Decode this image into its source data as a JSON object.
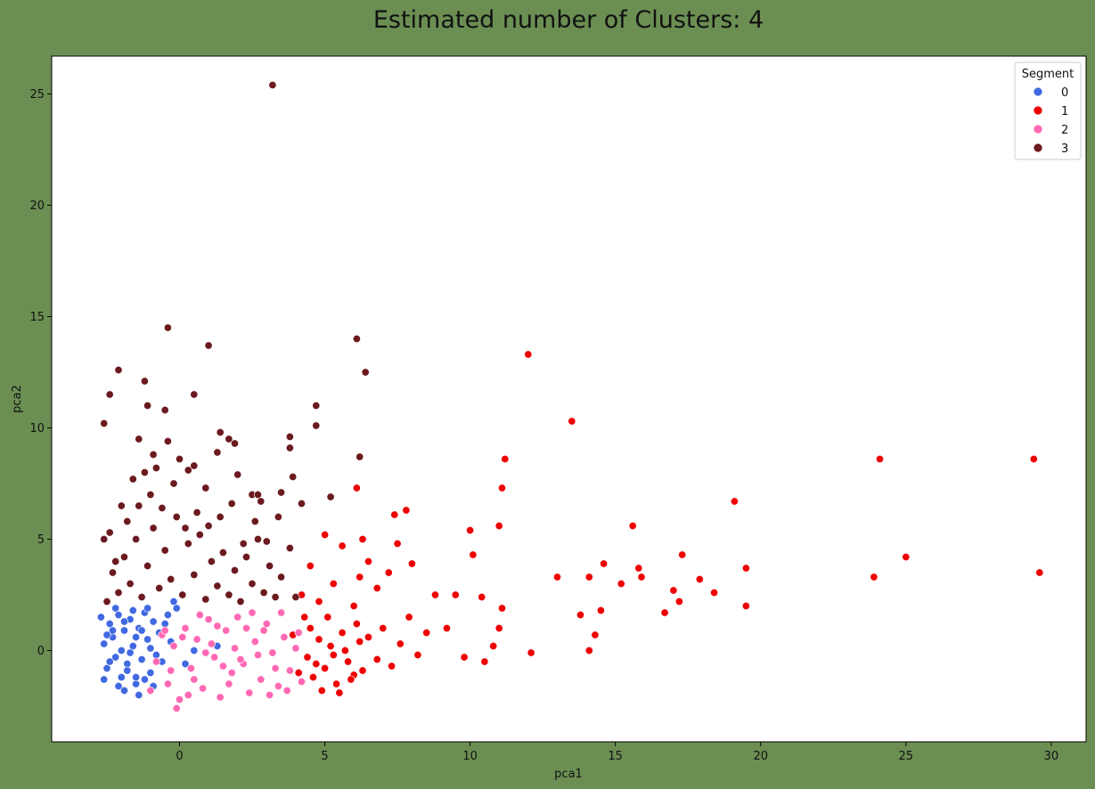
{
  "chart_data": {
    "type": "scatter",
    "title": "Estimated number of Clusters: 4",
    "xlabel": "pca1",
    "ylabel": "pca2",
    "xlim": [
      -4.4,
      31.2
    ],
    "ylim": [
      -4.1,
      26.7
    ],
    "xticks": [
      0,
      5,
      10,
      15,
      20,
      25,
      30
    ],
    "yticks": [
      0,
      5,
      10,
      15,
      20,
      25
    ],
    "grid": false,
    "legend": {
      "title": "Segment",
      "placement": "top-right"
    },
    "colors": {
      "0": "#4169e1",
      "1": "#ee0000",
      "2": "#ff69b4",
      "3": "#6b1a1f",
      "background": "#6b8f53",
      "plot_bg": "#ffffff"
    },
    "series": [
      {
        "name": "0",
        "color": "#4169e1",
        "points": [
          [
            -2.7,
            1.5
          ],
          [
            -2.6,
            0.3
          ],
          [
            -2.5,
            -0.8
          ],
          [
            -2.4,
            1.2
          ],
          [
            -2.3,
            0.6
          ],
          [
            -2.2,
            -0.3
          ],
          [
            -2.1,
            1.6
          ],
          [
            -2.0,
            -1.2
          ],
          [
            -1.9,
            0.9
          ],
          [
            -1.8,
            -0.6
          ],
          [
            -1.7,
            1.4
          ],
          [
            -1.6,
            0.2
          ],
          [
            -1.5,
            -1.5
          ],
          [
            -1.4,
            1.0
          ],
          [
            -1.3,
            -0.4
          ],
          [
            -1.2,
            1.7
          ],
          [
            -1.1,
            0.5
          ],
          [
            -1.0,
            -1.0
          ],
          [
            -0.9,
            1.3
          ],
          [
            -0.8,
            -0.2
          ],
          [
            -2.6,
            -1.3
          ],
          [
            -2.2,
            1.9
          ],
          [
            -1.9,
            -1.8
          ],
          [
            -1.6,
            1.8
          ],
          [
            -1.4,
            -2.0
          ],
          [
            -1.1,
            1.9
          ],
          [
            -0.7,
            0.8
          ],
          [
            -0.5,
            1.2
          ],
          [
            -0.3,
            0.4
          ],
          [
            -0.1,
            1.9
          ],
          [
            0.2,
            -0.6
          ],
          [
            0.5,
            0.0
          ],
          [
            1.3,
            0.2
          ],
          [
            -2.0,
            0.0
          ],
          [
            -1.5,
            0.6
          ],
          [
            -1.0,
            0.1
          ],
          [
            -2.4,
            -0.5
          ],
          [
            -1.8,
            -0.9
          ],
          [
            -1.2,
            -1.3
          ],
          [
            -0.6,
            -0.5
          ],
          [
            -2.3,
            0.9
          ],
          [
            -1.7,
            -0.1
          ],
          [
            -0.4,
            1.6
          ],
          [
            -0.2,
            2.2
          ],
          [
            -1.3,
            0.9
          ],
          [
            -2.1,
            -1.6
          ],
          [
            -1.5,
            -1.2
          ],
          [
            -0.9,
            -1.6
          ],
          [
            -2.5,
            0.7
          ],
          [
            -1.9,
            1.3
          ]
        ]
      },
      {
        "name": "1",
        "color": "#ee0000",
        "points": [
          [
            4.4,
            -0.3
          ],
          [
            4.6,
            -1.2
          ],
          [
            4.8,
            0.5
          ],
          [
            5.0,
            -0.8
          ],
          [
            5.2,
            0.2
          ],
          [
            5.4,
            -1.5
          ],
          [
            5.6,
            0.8
          ],
          [
            5.8,
            -0.5
          ],
          [
            6.0,
            -1.1
          ],
          [
            6.2,
            0.4
          ],
          [
            4.5,
            1.0
          ],
          [
            4.7,
            -0.6
          ],
          [
            4.9,
            -1.8
          ],
          [
            5.1,
            1.5
          ],
          [
            5.3,
            -0.2
          ],
          [
            5.5,
            -1.9
          ],
          [
            5.7,
            0.0
          ],
          [
            5.9,
            -1.3
          ],
          [
            6.1,
            1.2
          ],
          [
            6.3,
            -0.9
          ],
          [
            6.5,
            0.6
          ],
          [
            6.8,
            -0.4
          ],
          [
            7.0,
            1.0
          ],
          [
            7.3,
            -0.7
          ],
          [
            7.6,
            0.3
          ],
          [
            7.9,
            1.5
          ],
          [
            8.2,
            -0.2
          ],
          [
            8.5,
            0.8
          ],
          [
            8.8,
            2.5
          ],
          [
            9.2,
            1.0
          ],
          [
            4.2,
            2.5
          ],
          [
            4.5,
            3.8
          ],
          [
            4.8,
            2.2
          ],
          [
            5.0,
            5.2
          ],
          [
            5.3,
            3.0
          ],
          [
            5.6,
            4.7
          ],
          [
            6.0,
            2.0
          ],
          [
            6.2,
            3.3
          ],
          [
            6.5,
            4.0
          ],
          [
            6.8,
            2.8
          ],
          [
            7.2,
            3.5
          ],
          [
            7.5,
            4.8
          ],
          [
            7.8,
            6.3
          ],
          [
            8.0,
            3.9
          ],
          [
            6.1,
            7.3
          ],
          [
            6.3,
            5.0
          ],
          [
            7.4,
            6.1
          ],
          [
            9.5,
            2.5
          ],
          [
            9.8,
            -0.3
          ],
          [
            10.0,
            5.4
          ],
          [
            10.1,
            4.3
          ],
          [
            10.4,
            2.4
          ],
          [
            10.5,
            -0.5
          ],
          [
            10.8,
            0.2
          ],
          [
            11.0,
            1.0
          ],
          [
            11.0,
            5.6
          ],
          [
            11.1,
            7.3
          ],
          [
            11.2,
            8.6
          ],
          [
            11.1,
            1.9
          ],
          [
            12.1,
            -0.1
          ],
          [
            12.0,
            13.3
          ],
          [
            13.0,
            3.3
          ],
          [
            13.5,
            10.3
          ],
          [
            13.8,
            1.6
          ],
          [
            14.1,
            3.3
          ],
          [
            14.3,
            0.7
          ],
          [
            14.5,
            1.8
          ],
          [
            14.6,
            3.9
          ],
          [
            14.1,
            0.0
          ],
          [
            15.2,
            3.0
          ],
          [
            15.6,
            5.6
          ],
          [
            15.8,
            3.7
          ],
          [
            15.9,
            3.3
          ],
          [
            16.7,
            1.7
          ],
          [
            17.0,
            2.7
          ],
          [
            17.2,
            2.2
          ],
          [
            17.3,
            4.3
          ],
          [
            17.9,
            3.2
          ],
          [
            18.4,
            2.6
          ],
          [
            19.1,
            6.7
          ],
          [
            19.5,
            3.7
          ],
          [
            19.5,
            2.0
          ],
          [
            23.9,
            3.3
          ],
          [
            24.1,
            8.6
          ],
          [
            25.0,
            4.2
          ],
          [
            29.4,
            8.6
          ],
          [
            29.6,
            3.5
          ],
          [
            3.9,
            0.7
          ],
          [
            4.1,
            -1.0
          ],
          [
            4.3,
            1.5
          ]
        ]
      },
      {
        "name": "2",
        "color": "#ff69b4",
        "points": [
          [
            -1.0,
            -1.8
          ],
          [
            -0.8,
            -0.5
          ],
          [
            -0.6,
            0.7
          ],
          [
            -0.4,
            -1.5
          ],
          [
            -0.2,
            0.2
          ],
          [
            0.0,
            -2.2
          ],
          [
            0.2,
            1.0
          ],
          [
            0.4,
            -0.8
          ],
          [
            0.6,
            0.5
          ],
          [
            0.8,
            -1.7
          ],
          [
            1.0,
            1.4
          ],
          [
            1.2,
            -0.3
          ],
          [
            1.4,
            -2.1
          ],
          [
            1.6,
            0.9
          ],
          [
            1.8,
            -1.0
          ],
          [
            2.0,
            1.5
          ],
          [
            2.2,
            -0.6
          ],
          [
            2.4,
            -1.9
          ],
          [
            2.6,
            0.4
          ],
          [
            2.8,
            -1.3
          ],
          [
            3.0,
            1.2
          ],
          [
            3.2,
            -0.1
          ],
          [
            3.4,
            -1.6
          ],
          [
            3.6,
            0.6
          ],
          [
            3.8,
            -0.9
          ],
          [
            4.0,
            0.1
          ],
          [
            4.2,
            -1.4
          ],
          [
            -0.1,
            -2.6
          ],
          [
            0.3,
            -2.0
          ],
          [
            0.7,
            1.6
          ],
          [
            1.1,
            0.3
          ],
          [
            1.5,
            -0.7
          ],
          [
            1.9,
            0.1
          ],
          [
            2.3,
            1.0
          ],
          [
            2.7,
            -0.2
          ],
          [
            3.1,
            -2.0
          ],
          [
            3.5,
            1.7
          ],
          [
            -0.5,
            0.9
          ],
          [
            -0.3,
            -0.9
          ],
          [
            0.1,
            0.6
          ],
          [
            0.5,
            -1.3
          ],
          [
            0.9,
            -0.1
          ],
          [
            1.3,
            1.1
          ],
          [
            1.7,
            -1.5
          ],
          [
            2.1,
            -0.4
          ],
          [
            2.5,
            1.7
          ],
          [
            2.9,
            0.9
          ],
          [
            3.3,
            -0.8
          ],
          [
            3.7,
            -1.8
          ],
          [
            4.1,
            0.8
          ]
        ]
      },
      {
        "name": "3",
        "color": "#6b1a1f",
        "points": [
          [
            -2.5,
            2.2
          ],
          [
            -2.3,
            3.5
          ],
          [
            -2.1,
            2.6
          ],
          [
            -1.9,
            4.2
          ],
          [
            -1.7,
            3.0
          ],
          [
            -1.5,
            5.0
          ],
          [
            -1.3,
            2.4
          ],
          [
            -1.1,
            3.8
          ],
          [
            -0.9,
            5.5
          ],
          [
            -0.7,
            2.8
          ],
          [
            -0.5,
            4.5
          ],
          [
            -0.3,
            3.2
          ],
          [
            -0.1,
            6.0
          ],
          [
            0.1,
            2.5
          ],
          [
            0.3,
            4.8
          ],
          [
            0.5,
            3.4
          ],
          [
            0.7,
            5.2
          ],
          [
            0.9,
            2.3
          ],
          [
            1.1,
            4.0
          ],
          [
            1.3,
            2.9
          ],
          [
            1.5,
            4.4
          ],
          [
            1.7,
            2.5
          ],
          [
            1.9,
            3.6
          ],
          [
            2.1,
            2.2
          ],
          [
            2.3,
            4.2
          ],
          [
            2.5,
            3.0
          ],
          [
            2.7,
            5.0
          ],
          [
            2.9,
            2.6
          ],
          [
            3.1,
            3.8
          ],
          [
            3.3,
            2.4
          ],
          [
            -2.6,
            5.0
          ],
          [
            -2.4,
            5.3
          ],
          [
            -2.2,
            4.0
          ],
          [
            -1.8,
            5.8
          ],
          [
            -1.4,
            6.5
          ],
          [
            -1.0,
            7.0
          ],
          [
            -0.6,
            6.4
          ],
          [
            -0.2,
            7.5
          ],
          [
            0.2,
            5.5
          ],
          [
            0.6,
            6.2
          ],
          [
            1.0,
            5.6
          ],
          [
            1.4,
            6.0
          ],
          [
            1.8,
            6.6
          ],
          [
            2.2,
            4.8
          ],
          [
            2.6,
            5.8
          ],
          [
            3.0,
            4.9
          ],
          [
            3.4,
            6.0
          ],
          [
            3.8,
            4.6
          ],
          [
            3.5,
            3.3
          ],
          [
            4.0,
            2.4
          ],
          [
            -2.6,
            10.2
          ],
          [
            -2.4,
            11.5
          ],
          [
            -2.1,
            12.6
          ],
          [
            -1.2,
            12.1
          ],
          [
            -0.5,
            10.8
          ],
          [
            -0.4,
            14.5
          ],
          [
            0.5,
            11.5
          ],
          [
            1.0,
            13.7
          ],
          [
            -1.1,
            11.0
          ],
          [
            -1.4,
            9.5
          ],
          [
            -0.4,
            9.4
          ],
          [
            -0.9,
            8.8
          ],
          [
            0.0,
            8.6
          ],
          [
            0.3,
            8.1
          ],
          [
            0.5,
            8.3
          ],
          [
            1.3,
            8.9
          ],
          [
            1.4,
            9.8
          ],
          [
            1.7,
            9.5
          ],
          [
            1.9,
            9.3
          ],
          [
            2.0,
            7.9
          ],
          [
            2.5,
            7.0
          ],
          [
            2.7,
            7.0
          ],
          [
            3.5,
            7.1
          ],
          [
            3.8,
            9.6
          ],
          [
            3.8,
            9.1
          ],
          [
            3.9,
            7.8
          ],
          [
            4.7,
            11.0
          ],
          [
            4.7,
            10.1
          ],
          [
            5.2,
            6.9
          ],
          [
            6.1,
            14.0
          ],
          [
            6.2,
            8.7
          ],
          [
            6.4,
            12.5
          ],
          [
            3.2,
            25.4
          ],
          [
            -1.6,
            7.7
          ],
          [
            -0.8,
            8.2
          ],
          [
            0.9,
            7.3
          ],
          [
            -2.0,
            6.5
          ],
          [
            -1.2,
            8.0
          ],
          [
            2.8,
            6.7
          ],
          [
            4.2,
            6.6
          ]
        ]
      }
    ]
  }
}
